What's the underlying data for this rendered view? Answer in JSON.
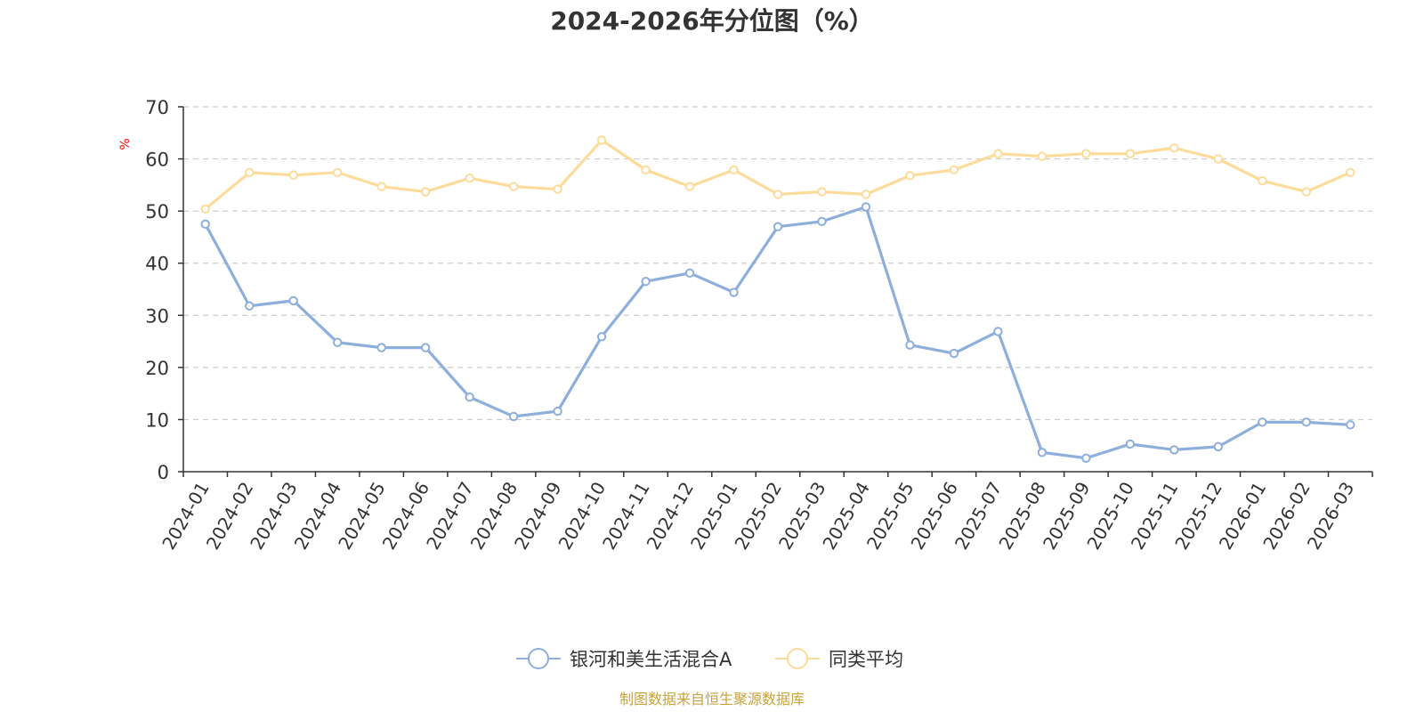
{
  "chart_data": {
    "type": "line",
    "title": "2024-2026年分位图（%）",
    "ylabel": "%",
    "xlabel": "",
    "ylim": [
      0,
      70
    ],
    "yticks": [
      0,
      10,
      20,
      30,
      40,
      50,
      60,
      70
    ],
    "grid": true,
    "legend_position": "bottom-center",
    "categories": [
      "2024-01",
      "2024-02",
      "2024-03",
      "2024-04",
      "2024-05",
      "2024-06",
      "2024-07",
      "2024-08",
      "2024-09",
      "2024-10",
      "2024-11",
      "2024-12",
      "2025-01",
      "2025-02",
      "2025-03",
      "2025-04",
      "2025-05",
      "2025-06",
      "2025-07",
      "2025-08",
      "2025-09",
      "2025-10",
      "2025-11",
      "2025-12",
      "2026-01",
      "2026-02",
      "2026-03"
    ],
    "series": [
      {
        "name": "银河和美生活混合A",
        "color": "#8eaedb",
        "values": [
          47.5,
          31.8,
          32.8,
          24.8,
          23.8,
          23.8,
          14.3,
          10.6,
          11.6,
          25.9,
          36.5,
          38.1,
          34.4,
          47.0,
          48.0,
          50.8,
          24.3,
          22.7,
          26.9,
          3.7,
          2.6,
          5.3,
          4.2,
          4.8,
          9.5,
          9.5,
          9.0
        ]
      },
      {
        "name": "同类平均",
        "color": "#fddc9b",
        "values": [
          50.4,
          57.4,
          56.9,
          57.4,
          54.7,
          53.7,
          56.3,
          54.7,
          54.2,
          63.6,
          57.9,
          54.7,
          57.9,
          53.2,
          53.7,
          53.2,
          56.8,
          57.9,
          61.0,
          60.5,
          61.0,
          61.0,
          62.1,
          60.0,
          55.8,
          53.7,
          57.4
        ]
      }
    ],
    "source": "制图数据来自恒生聚源数据库"
  }
}
